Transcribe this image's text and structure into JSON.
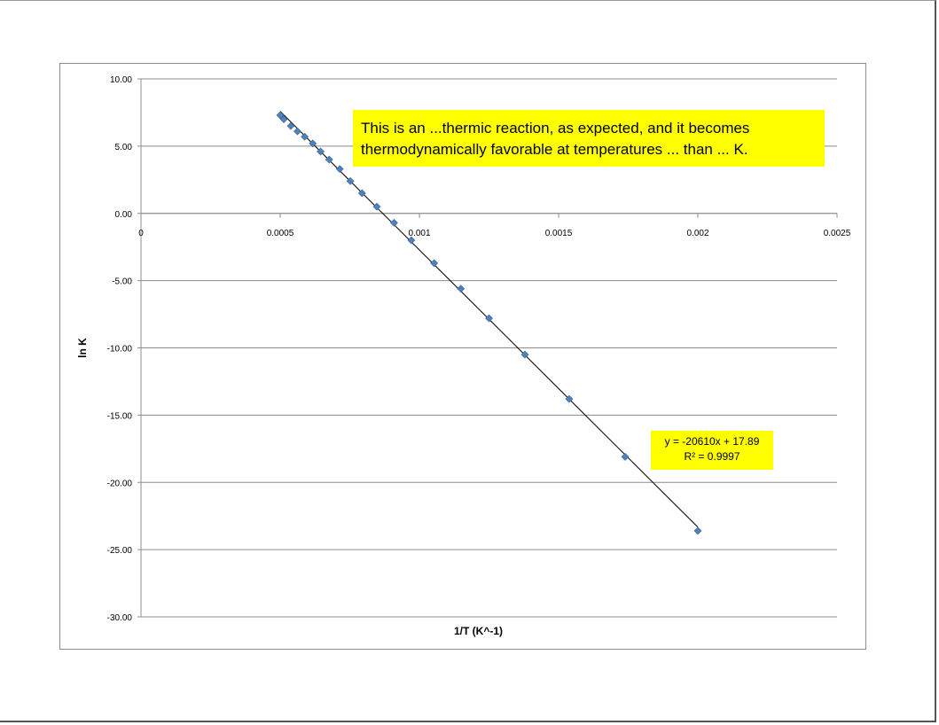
{
  "chart_data": {
    "type": "scatter",
    "title": "",
    "xlabel": "1/T (K^-1)",
    "ylabel": "ln K",
    "xlim": [
      0,
      0.0025
    ],
    "ylim": [
      -30,
      10
    ],
    "x_ticks": [
      "0",
      "0.0005",
      "0.001",
      "0.0015",
      "0.002",
      "0.0025"
    ],
    "y_ticks": [
      "10.00",
      "5.00",
      "0.00",
      "-5.00",
      "-10.00",
      "-15.00",
      "-20.00",
      "-25.00",
      "-30.00"
    ],
    "grid": true,
    "marker_color": "#4f81bd",
    "series": [
      {
        "x": [
          0.0005,
          0.000513,
          0.000538,
          0.000562,
          0.000588,
          0.000617,
          0.000645,
          0.000676,
          0.000714,
          0.000752,
          0.000794,
          0.000847,
          0.000909,
          0.000971,
          0.001053,
          0.001149,
          0.00125,
          0.001379,
          0.001538,
          0.001739,
          0.002
        ],
        "y": [
          7.3,
          7.0,
          6.5,
          6.1,
          5.7,
          5.2,
          4.6,
          4.0,
          3.3,
          2.4,
          1.5,
          0.5,
          -0.7,
          -2.0,
          -3.7,
          -5.6,
          -7.8,
          -10.5,
          -13.8,
          -18.1,
          -23.6
        ]
      }
    ],
    "trendline": {
      "slope": -20610,
      "intercept": 17.89,
      "x_range": [
        0.0005,
        0.002
      ],
      "equation_label": "y = -20610x + 17.89",
      "r2_label": "R² = 0.9997"
    }
  },
  "annotation": {
    "line1": "This is an ...thermic reaction, as expected, and it becomes",
    "line2": "thermodynamically favorable at temperatures ... than ... K."
  }
}
